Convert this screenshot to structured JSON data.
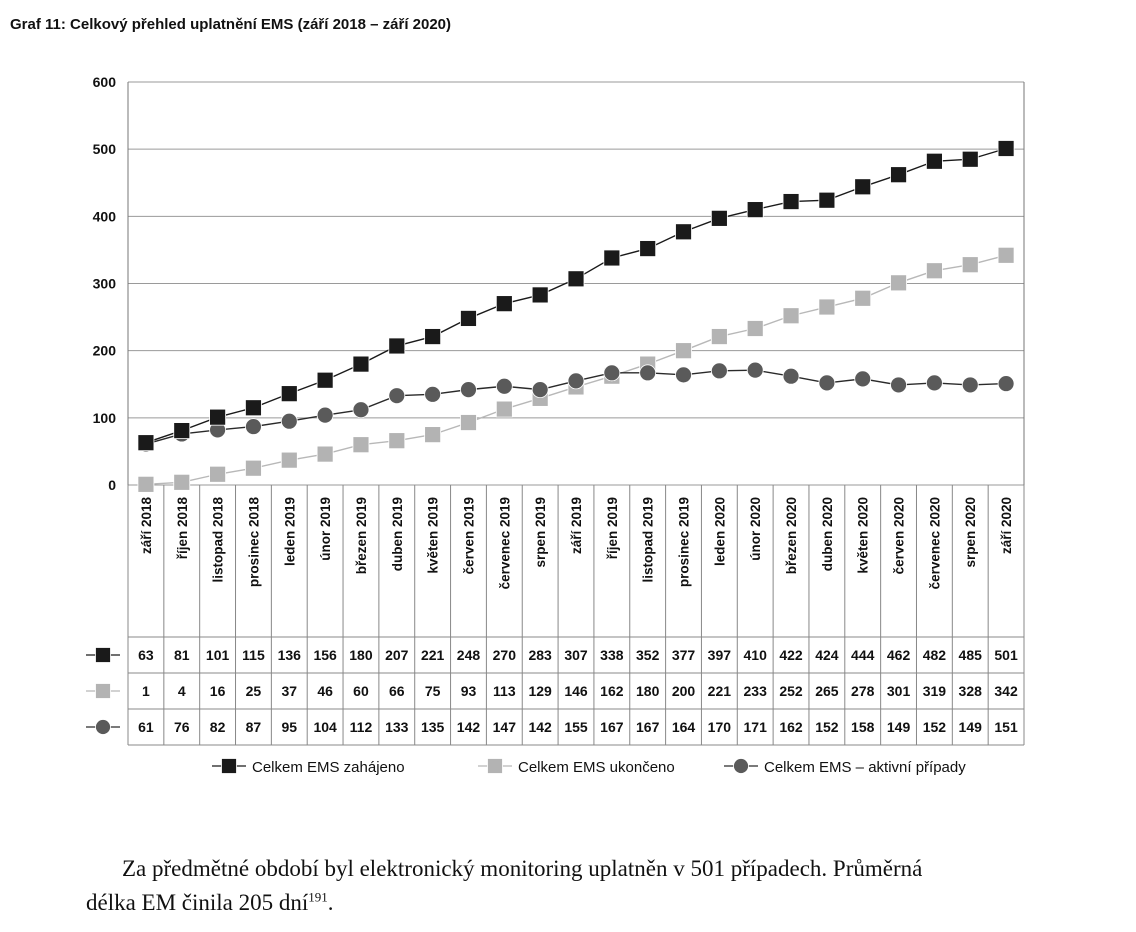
{
  "figure": {
    "title": "Graf 11:  Celkový přehled uplatnění EMS (září 2018 – září 2020)"
  },
  "chart_data": {
    "type": "line",
    "categories": [
      "září 2018",
      "říjen 2018",
      "listopad 2018",
      "prosinec 2018",
      "leden 2019",
      "únor 2019",
      "březen 2019",
      "duben 2019",
      "květen 2019",
      "červen 2019",
      "červenec 2019",
      "srpen 2019",
      "září 2019",
      "říjen 2019",
      "listopad 2019",
      "prosinec 2019",
      "leden 2020",
      "únor 2020",
      "březen 2020",
      "duben 2020",
      "květen 2020",
      "červen 2020",
      "červenec 2020",
      "srpen 2020",
      "září 2020"
    ],
    "series": [
      {
        "name": "Celkem EMS zahájeno",
        "marker": "square",
        "color": "#1a1a1a",
        "line_color": "#1a1a1a",
        "values": [
          63,
          81,
          101,
          115,
          136,
          156,
          180,
          207,
          221,
          248,
          270,
          283,
          307,
          338,
          352,
          377,
          397,
          410,
          422,
          424,
          444,
          462,
          482,
          485,
          501
        ]
      },
      {
        "name": "Celkem EMS ukončeno",
        "marker": "square",
        "color": "#b3b3b3",
        "line_color": "#b8b8b8",
        "values": [
          1,
          4,
          16,
          25,
          37,
          46,
          60,
          66,
          75,
          93,
          113,
          129,
          146,
          162,
          180,
          200,
          221,
          233,
          252,
          265,
          278,
          301,
          319,
          328,
          342
        ]
      },
      {
        "name": "Celkem EMS – aktivní případy",
        "marker": "circle",
        "color": "#5a5a5a",
        "line_color": "#2a2a2a",
        "values": [
          61,
          76,
          82,
          87,
          95,
          104,
          112,
          133,
          135,
          142,
          147,
          142,
          155,
          167,
          167,
          164,
          170,
          171,
          162,
          152,
          158,
          149,
          152,
          149,
          151
        ]
      }
    ],
    "yticks": [
      0,
      100,
      200,
      300,
      400,
      500,
      600
    ],
    "ylim": [
      0,
      600
    ],
    "grid": true,
    "legend": "bottom",
    "data_table": true
  },
  "paragraph": {
    "line1": "Za předmětné období byl elektronický monitoring uplatněn v 501 případech. Průměrná",
    "line2": "délka EM činila 205 dní",
    "footnote": "191",
    "line2_end": "."
  }
}
